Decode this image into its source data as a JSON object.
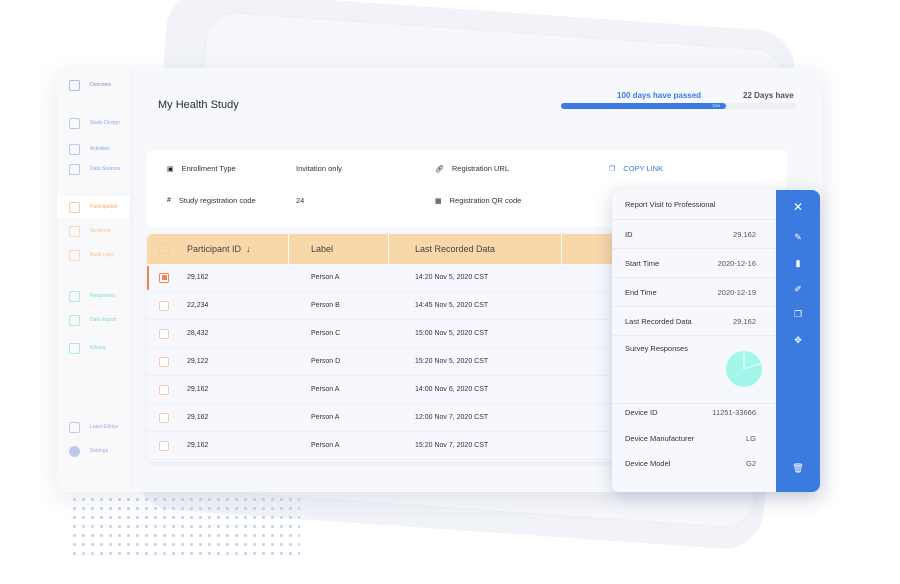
{
  "sidebar": {
    "items": [
      {
        "label": "Overview",
        "color": "#7a8fd0"
      },
      {
        "label": "Study Design",
        "color": "#8aa6e6"
      },
      {
        "label": "Activities",
        "color": "#8aa6e6"
      },
      {
        "label": "Data Sources",
        "color": "#8aa6e6"
      },
      {
        "label": "Participation",
        "color": "#f5a860",
        "active": true
      },
      {
        "label": "Sessions",
        "color": "#f7c28e"
      },
      {
        "label": "Audit Logs",
        "color": "#f7c28e"
      },
      {
        "label": "Responses",
        "color": "#7fdcc4"
      },
      {
        "label": "Data Export",
        "color": "#7fdcc4"
      },
      {
        "label": "Kibana",
        "color": "#7fdcc4"
      },
      {
        "label": "Learn Ethica",
        "color": "#9aaae6"
      },
      {
        "label": "Settings",
        "color": "#9aaae6"
      }
    ]
  },
  "header": {
    "title": "My Health Study",
    "progress_label": "100 days have passed",
    "remaining_label": "22 Days have",
    "progress_percent": 70,
    "progress_text": "70%"
  },
  "info": {
    "enrollment_label": "Enrollment Type",
    "enrollment_value": "Invitation only",
    "code_label": "Study registration code",
    "code_value": "24",
    "url_label": "Registration URL",
    "copy_link": "COPY LINK",
    "qr_label": "Registration QR code"
  },
  "table": {
    "columns": [
      "Participant ID",
      "Label",
      "Last Recorded Data"
    ],
    "rows": [
      {
        "id": "29,162",
        "label": "Person A",
        "time": "14:20 Nov 5, 2020 CST",
        "selected": true
      },
      {
        "id": "22,234",
        "label": "Person B",
        "time": "14:45 Nov 5, 2020 CST"
      },
      {
        "id": "28,432",
        "label": "Person C",
        "time": "15:00 Nov 5, 2020 CST"
      },
      {
        "id": "29,122",
        "label": "Person D",
        "time": "15:20 Nov 5, 2020 CST"
      },
      {
        "id": "29,162",
        "label": "Person A",
        "time": "14:00 Nov 6, 2020 CST"
      },
      {
        "id": "29,162",
        "label": "Person A",
        "time": "12:00 Nov 7, 2020 CST"
      },
      {
        "id": "29,162",
        "label": "Person A",
        "time": "15:20 Nov 7, 2020 CST"
      }
    ]
  },
  "panel": {
    "title": "Report Visit to Professional",
    "fields": [
      {
        "label": "ID",
        "value": "29,162"
      },
      {
        "label": "Start Time",
        "value": "2020-12-16"
      },
      {
        "label": "End Time",
        "value": "2020-12-19"
      },
      {
        "label": "Last Recorded Data",
        "value": "29,162"
      }
    ],
    "survey_label": "Survey Responses",
    "survey_pie_fraction": 0.2,
    "device": [
      {
        "label": "Device ID",
        "value": "11251-33666"
      },
      {
        "label": "Device Manufacturer",
        "value": "LG"
      },
      {
        "label": "Device Model",
        "value": "G2"
      }
    ],
    "actions": [
      "close-icon",
      "edit-icon",
      "file-icon",
      "file-edit-icon",
      "copy-icon",
      "move-icon",
      "trash-icon"
    ]
  },
  "colors": {
    "accent": "#3b7be0",
    "header": "#f8d8a8",
    "selected": "#f5834a",
    "pie": "#a3f7ea"
  }
}
